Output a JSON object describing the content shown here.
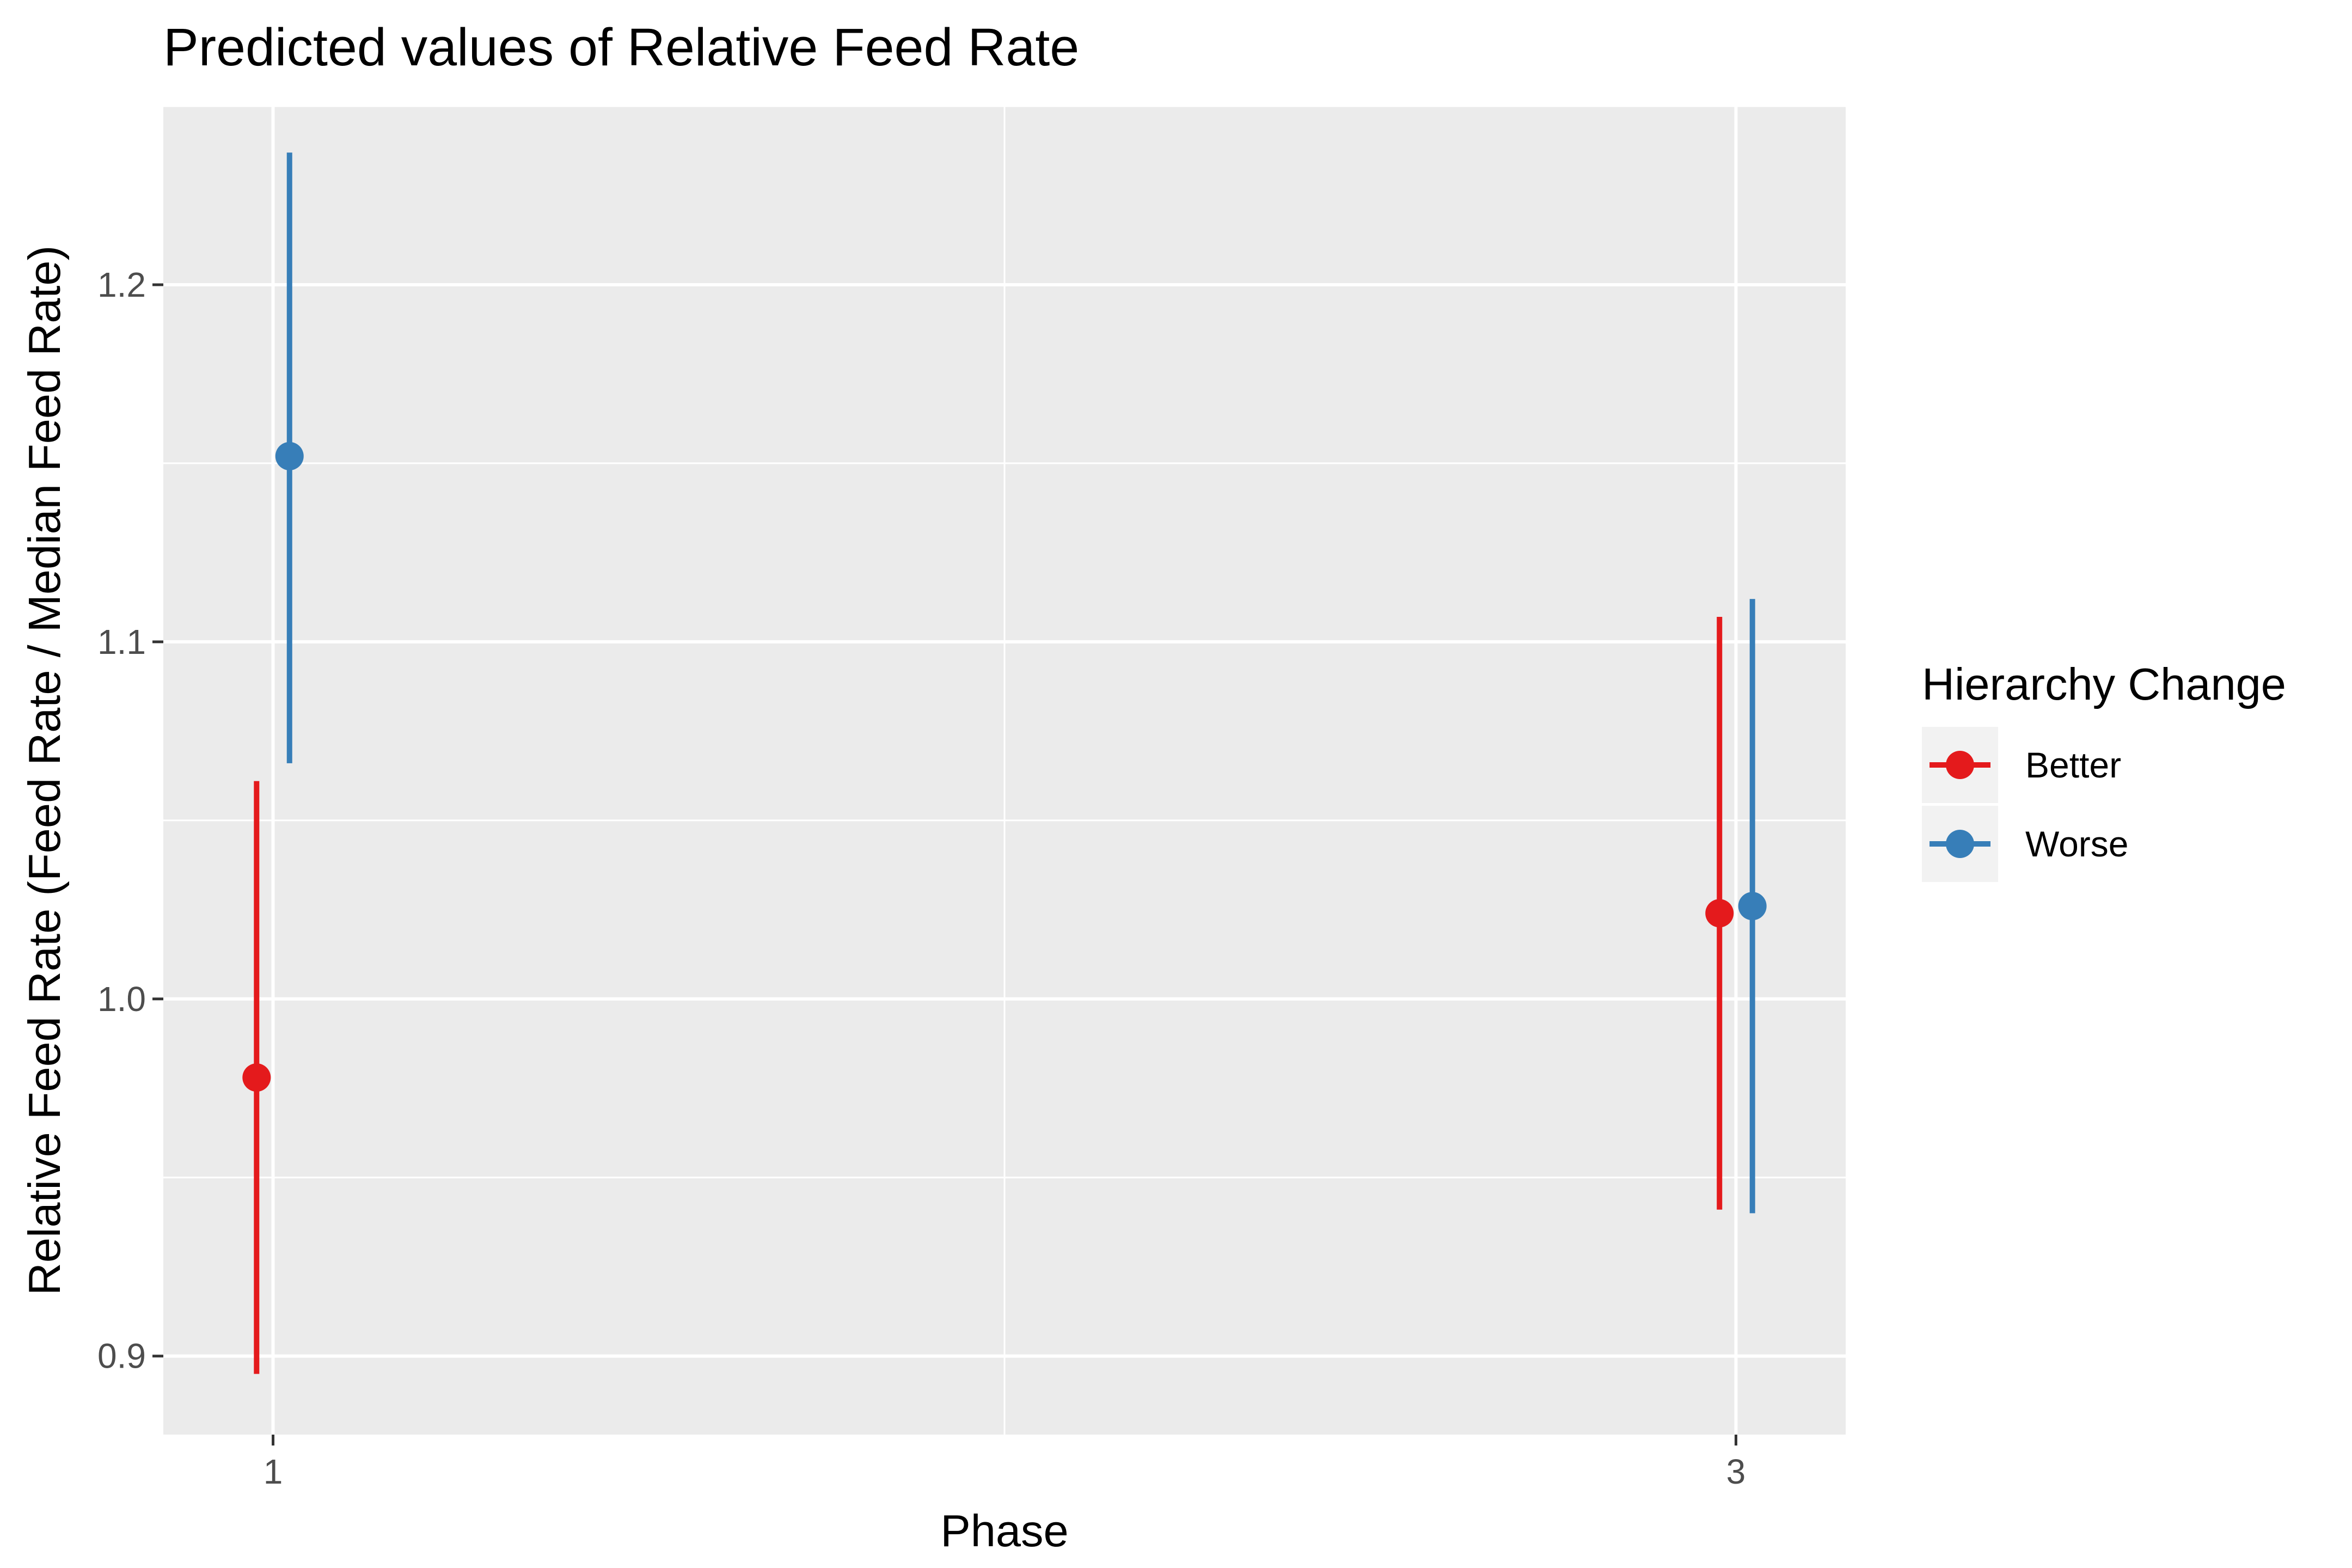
{
  "chart_data": {
    "type": "scatter",
    "title": "Predicted values of Relative Feed Rate",
    "xlabel": "Phase",
    "ylabel": "Relative Feed Rate (Feed Rate / Median Feed Rate)",
    "x_ticks": [
      "1",
      "3"
    ],
    "x_range": [
      0.85,
      3.15
    ],
    "y_ticks": [
      "0.9",
      "1.0",
      "1.1",
      "1.2"
    ],
    "ylim": [
      0.878,
      1.25
    ],
    "grid": true,
    "legend": {
      "title": "Hierarchy Change",
      "position": "right"
    },
    "series": [
      {
        "name": "Better",
        "color": "#E41A1C",
        "points": [
          {
            "x": 1,
            "y": 0.978,
            "low": 0.895,
            "high": 1.061
          },
          {
            "x": 3,
            "y": 1.024,
            "low": 0.941,
            "high": 1.107
          }
        ]
      },
      {
        "name": "Worse",
        "color": "#377EB8",
        "points": [
          {
            "x": 1,
            "y": 1.152,
            "low": 1.066,
            "high": 1.237
          },
          {
            "x": 3,
            "y": 1.026,
            "low": 0.94,
            "high": 1.112
          }
        ]
      }
    ]
  }
}
